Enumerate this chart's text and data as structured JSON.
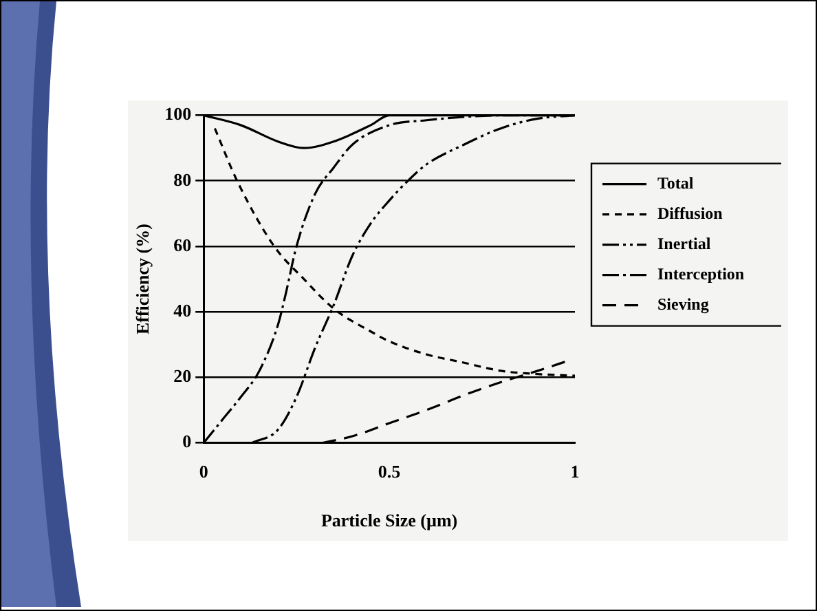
{
  "chart_data": {
    "type": "line",
    "xlabel": "Particle Size (µm)",
    "ylabel": "Efficiency (%)",
    "xlim": [
      0,
      1
    ],
    "xticks": [
      0,
      0.5,
      1
    ],
    "ylim": [
      0,
      100
    ],
    "yticks": [
      0,
      20,
      40,
      60,
      80,
      100
    ],
    "grid": "y",
    "legend": "right",
    "marker": "none",
    "series": [
      {
        "name": "Total",
        "color": "#000000",
        "line_style": "solid",
        "x": [
          0,
          0.1,
          0.2,
          0.27,
          0.35,
          0.45,
          0.5,
          0.6,
          0.8,
          1
        ],
        "values": [
          100,
          97,
          92,
          90,
          92,
          97,
          100,
          100,
          100,
          100
        ]
      },
      {
        "name": "Diffusion",
        "color": "#000000",
        "line_style": "dashed",
        "x": [
          0.03,
          0.09,
          0.19,
          0.27,
          0.35,
          0.45,
          0.5,
          0.6,
          0.7,
          0.8,
          0.9,
          1
        ],
        "values": [
          96,
          80,
          60,
          50,
          41,
          34,
          31,
          27,
          24.5,
          22,
          21,
          20.5
        ]
      },
      {
        "name": "Inertial",
        "color": "#000000",
        "line_style": "dashed",
        "x": [
          0.13,
          0.2,
          0.25,
          0.3,
          0.35,
          0.4,
          0.45,
          0.5,
          0.55,
          0.6,
          0.7,
          0.8,
          0.9,
          1
        ],
        "values": [
          0,
          4,
          14,
          29,
          42,
          57,
          67,
          74,
          80,
          85,
          91,
          96,
          99,
          100
        ]
      },
      {
        "name": "Interception",
        "color": "#000000",
        "line_style": "dashed",
        "x": [
          0,
          0.05,
          0.1,
          0.15,
          0.2,
          0.22,
          0.25,
          0.3,
          0.35,
          0.4,
          0.5,
          0.6,
          0.7,
          0.8,
          1
        ],
        "values": [
          0,
          7,
          14,
          22,
          36,
          45,
          60,
          76,
          84,
          91,
          97,
          98.5,
          99.5,
          100,
          100
        ]
      },
      {
        "name": "Sieving",
        "color": "#000000",
        "line_style": "dashed",
        "x": [
          0.32,
          0.4,
          0.5,
          0.6,
          0.7,
          0.8,
          0.9,
          0.98
        ],
        "values": [
          0,
          2,
          6,
          10,
          14.5,
          18.5,
          22,
          25
        ]
      }
    ]
  }
}
